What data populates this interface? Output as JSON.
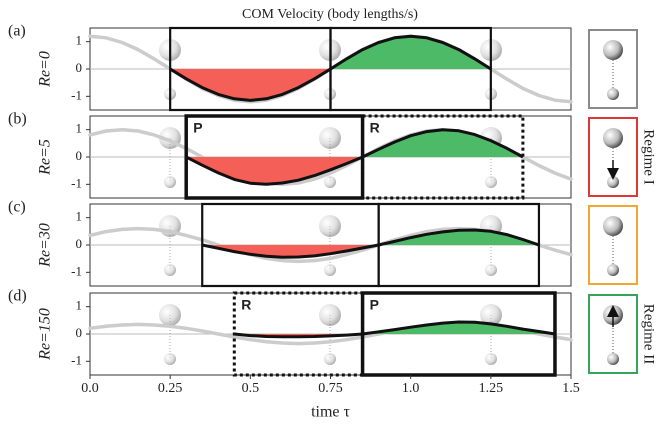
{
  "chart_data": [
    {
      "type": "line",
      "title": "COM Velocity (body lengths/s)",
      "label": "(a)",
      "ylabel": "Re=0",
      "icon_color": "#8a8a8a",
      "xlim": [
        0,
        1.5
      ],
      "ylim": [
        -1.5,
        1.5
      ],
      "yticks": [
        -1,
        0,
        1
      ],
      "zero_line": true,
      "neg_color": "#f45f57",
      "pos_color": "#4dba68",
      "boxes": [
        {
          "style": "solid"
        },
        {
          "style": "solid"
        }
      ],
      "x": [
        0,
        0.05,
        0.1,
        0.15,
        0.2,
        0.25,
        0.3,
        0.35,
        0.4,
        0.45,
        0.5,
        0.55,
        0.6,
        0.65,
        0.7,
        0.75,
        0.8,
        0.85,
        0.9,
        0.95,
        1.0,
        1.05,
        1.1,
        1.15,
        1.2,
        1.25,
        1.3,
        1.35,
        1.4,
        1.45,
        1.5
      ],
      "series": [
        {
          "color": "#111111",
          "values": [
            null,
            null,
            null,
            null,
            null,
            0,
            -0.36,
            -0.68,
            -0.93,
            -1.09,
            -1.15,
            -1.09,
            -0.93,
            -0.68,
            -0.36,
            0,
            0.37,
            0.71,
            0.97,
            1.14,
            1.2,
            1.14,
            0.97,
            0.71,
            0.37,
            0,
            null,
            null,
            null,
            null,
            null
          ]
        },
        {
          "color": "#cccccc",
          "values": [
            1.2,
            1.14,
            0.97,
            0.71,
            0.37,
            0,
            -0.37,
            -0.71,
            -0.97,
            -1.14,
            -1.2,
            -1.14,
            -0.97,
            -0.71,
            -0.37,
            0,
            0.37,
            0.71,
            0.97,
            1.14,
            1.2,
            1.14,
            0.97,
            0.71,
            0.37,
            0,
            -0.37,
            -0.71,
            -0.97,
            -1.14,
            -1.2
          ]
        }
      ]
    },
    {
      "type": "line",
      "label": "(b)",
      "ylabel": "Re=5",
      "icon_color": "#e0363a",
      "regime": "Regime I",
      "xlim": [
        0,
        1.5
      ],
      "ylim": [
        -1.5,
        1.5
      ],
      "yticks": [
        -1,
        0,
        1
      ],
      "zero_line": true,
      "neg_color": "#f45f57",
      "pos_color": "#4dba68",
      "boxes": [
        {
          "label": "P",
          "style": "thick"
        },
        {
          "label": "R",
          "style": "dashed"
        }
      ],
      "x": [
        0,
        0.05,
        0.1,
        0.15,
        0.2,
        0.25,
        0.3,
        0.35,
        0.4,
        0.45,
        0.5,
        0.55,
        0.6,
        0.65,
        0.7,
        0.75,
        0.8,
        0.85,
        0.9,
        0.95,
        1.0,
        1.05,
        1.1,
        1.15,
        1.2,
        1.25,
        1.3,
        1.35,
        1.4,
        1.45,
        1.5
      ],
      "series": [
        {
          "color": "#111111",
          "values": [
            null,
            null,
            null,
            null,
            null,
            null,
            0,
            -0.3,
            -0.58,
            -0.82,
            -0.96,
            -1.0,
            -0.95,
            -0.85,
            -0.68,
            -0.47,
            -0.24,
            0,
            0.28,
            0.55,
            0.78,
            0.93,
            1.0,
            0.96,
            0.82,
            0.6,
            0.32,
            0,
            null,
            null,
            null
          ]
        },
        {
          "color": "#cccccc",
          "values": [
            0.81,
            0.95,
            1,
            0.95,
            0.81,
            0.59,
            0.31,
            0,
            -0.31,
            -0.59,
            -0.81,
            -0.95,
            -1,
            -0.95,
            -0.81,
            -0.59,
            -0.31,
            0,
            0.31,
            0.59,
            0.81,
            0.95,
            1,
            0.95,
            0.81,
            0.59,
            0.31,
            0,
            -0.31,
            -0.59,
            -0.81
          ]
        }
      ]
    },
    {
      "type": "line",
      "label": "(c)",
      "ylabel": "Re=30",
      "icon_color": "#f0a830",
      "xlim": [
        0,
        1.5
      ],
      "ylim": [
        -1.5,
        1.5
      ],
      "yticks": [
        -1,
        0,
        1
      ],
      "zero_line": true,
      "neg_color": "#f45f57",
      "pos_color": "#4dba68",
      "boxes": [
        {
          "style": "solid"
        },
        {
          "style": "solid"
        }
      ],
      "x": [
        0,
        0.05,
        0.1,
        0.15,
        0.2,
        0.25,
        0.3,
        0.35,
        0.4,
        0.45,
        0.5,
        0.55,
        0.6,
        0.65,
        0.7,
        0.75,
        0.8,
        0.85,
        0.9,
        0.95,
        1.0,
        1.05,
        1.1,
        1.15,
        1.2,
        1.25,
        1.3,
        1.35,
        1.4,
        1.45,
        1.5
      ],
      "series": [
        {
          "color": "#111111",
          "values": [
            null,
            null,
            null,
            null,
            null,
            null,
            null,
            0,
            -0.12,
            -0.24,
            -0.34,
            -0.41,
            -0.45,
            -0.44,
            -0.4,
            -0.32,
            -0.22,
            -0.11,
            0,
            0.13,
            0.27,
            0.39,
            0.48,
            0.54,
            0.55,
            0.5,
            0.38,
            0.2,
            0,
            null,
            null
          ]
        },
        {
          "color": "#cccccc",
          "values": [
            0.35,
            0.49,
            0.57,
            0.6,
            0.57,
            0.49,
            0.35,
            0.19,
            0,
            -0.19,
            -0.35,
            -0.49,
            -0.57,
            -0.6,
            -0.57,
            -0.49,
            -0.35,
            -0.19,
            0,
            0.19,
            0.35,
            0.49,
            0.57,
            0.6,
            0.57,
            0.49,
            0.35,
            0.19,
            0,
            -0.19,
            -0.35
          ]
        }
      ]
    },
    {
      "type": "line",
      "label": "(d)",
      "ylabel": "Re=150",
      "icon_color": "#3aa35a",
      "regime": "Regime II",
      "xlabel": "time  τ",
      "xlim": [
        0,
        1.5
      ],
      "ylim": [
        -1.5,
        1.5
      ],
      "yticks": [
        -1,
        0,
        1
      ],
      "zero_line": true,
      "neg_color": "#f45f57",
      "pos_color": "#4dba68",
      "xticks": [
        {
          "value": 0,
          "label": "0.0"
        },
        0.25,
        0.5,
        0.75,
        {
          "value": 1,
          "label": "1.0"
        },
        1.25,
        1.5
      ],
      "boxes": [
        {
          "label": "R",
          "style": "dashed"
        },
        {
          "label": "P",
          "style": "thick"
        }
      ],
      "x": [
        0,
        0.05,
        0.1,
        0.15,
        0.2,
        0.25,
        0.3,
        0.35,
        0.4,
        0.45,
        0.5,
        0.55,
        0.6,
        0.65,
        0.7,
        0.75,
        0.8,
        0.85,
        0.9,
        0.95,
        1.0,
        1.05,
        1.1,
        1.15,
        1.2,
        1.25,
        1.3,
        1.35,
        1.4,
        1.45,
        1.5
      ],
      "series": [
        {
          "color": "#111111",
          "values": [
            null,
            null,
            null,
            null,
            null,
            null,
            null,
            null,
            null,
            0,
            -0.06,
            -0.09,
            -0.1,
            -0.1,
            -0.09,
            -0.07,
            -0.04,
            0,
            0.08,
            0.16,
            0.25,
            0.33,
            0.4,
            0.44,
            0.43,
            0.37,
            0.28,
            0.18,
            0.09,
            0,
            null
          ]
        },
        {
          "color": "#cccccc",
          "values": [
            0.21,
            0.28,
            0.33,
            0.35,
            0.33,
            0.28,
            0.21,
            0.11,
            0,
            -0.11,
            -0.21,
            -0.28,
            -0.33,
            -0.35,
            -0.33,
            -0.28,
            -0.21,
            -0.11,
            0,
            0.11,
            0.21,
            0.28,
            0.33,
            0.35,
            0.33,
            0.28,
            0.21,
            0.11,
            0,
            -0.11,
            -0.21
          ]
        }
      ]
    }
  ]
}
